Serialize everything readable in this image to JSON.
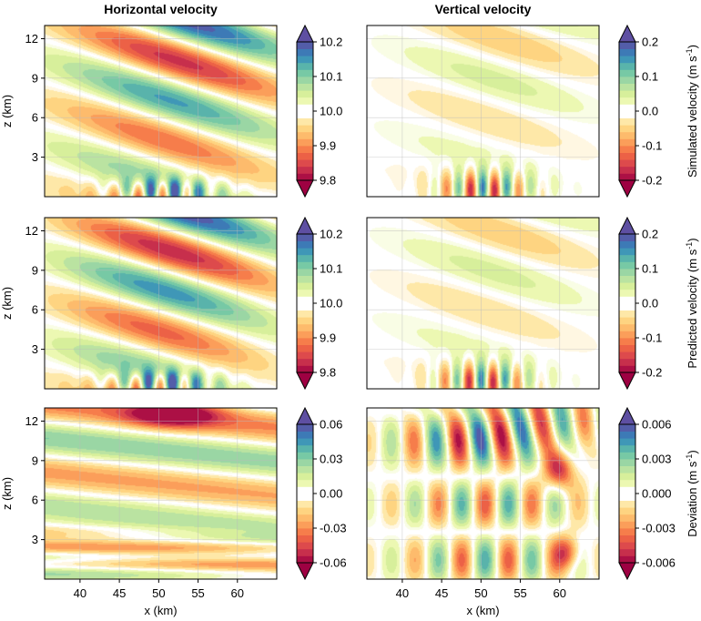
{
  "chart_data": {
    "type": "heatmap",
    "column_titles": [
      "Horizontal velocity",
      "Vertical velocity"
    ],
    "x_axis": {
      "label": "x (km)",
      "ticks": [
        40,
        45,
        50,
        55,
        60
      ],
      "range": [
        35.5,
        65
      ]
    },
    "z_axis": {
      "label": "z (km)",
      "ticks": [
        3,
        6,
        9,
        12
      ],
      "range": [
        0,
        13
      ]
    },
    "colormap": "spectral-reversed (red low, white mid, blue/purple high)",
    "grid": true,
    "colorbar_extend": "both",
    "rows": [
      {
        "row_label": "Simulated velocity (m s-1)",
        "horizontal": {
          "colorbar_ticks": [
            "10.2",
            "10.1",
            "10.0",
            "9.9",
            "9.8"
          ],
          "vmin": 9.8,
          "vmax": 10.2
        },
        "vertical": {
          "colorbar_ticks": [
            "0.2",
            "0.1",
            "0.0",
            "-0.1",
            "-0.2"
          ],
          "vmin": -0.2,
          "vmax": 0.2
        }
      },
      {
        "row_label": "Predicted velocity (m s-1)",
        "horizontal": {
          "colorbar_ticks": [
            "10.2",
            "10.1",
            "10.0",
            "9.9",
            "9.8"
          ],
          "vmin": 9.8,
          "vmax": 10.2
        },
        "vertical": {
          "colorbar_ticks": [
            "0.2",
            "0.1",
            "0.0",
            "-0.1",
            "-0.2"
          ],
          "vmin": -0.2,
          "vmax": 0.2
        }
      },
      {
        "row_label": "Deviation (m s-1)",
        "horizontal": {
          "colorbar_ticks": [
            "0.06",
            "0.03",
            "0.00",
            "-0.03",
            "-0.06"
          ],
          "vmin": -0.06,
          "vmax": 0.06
        },
        "vertical": {
          "colorbar_ticks": [
            "0.006",
            "0.003",
            "0.000",
            "-0.003",
            "-0.006"
          ],
          "vmin": -0.006,
          "vmax": 0.006
        }
      }
    ]
  }
}
